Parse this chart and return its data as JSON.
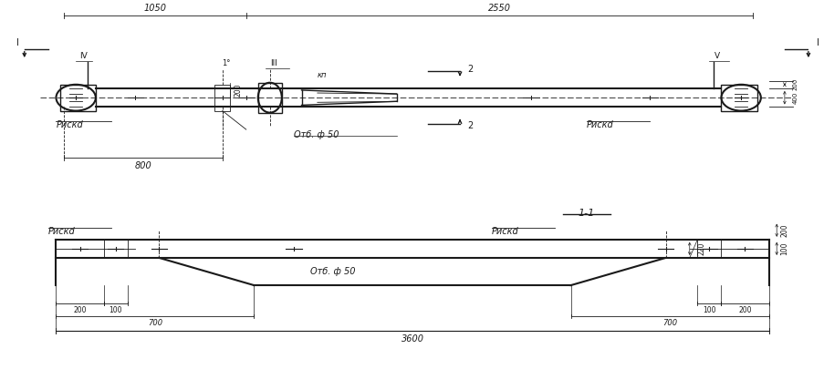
{
  "bg_color": "#ffffff",
  "line_color": "#1a1a1a",
  "dim_1050": "1050",
  "dim_2550": "2550",
  "dim_800": "800",
  "dim_700_l": "700",
  "dim_700_r": "700",
  "dim_3600": "3600",
  "dim_220": "220",
  "dim_200": "200",
  "dim_100": "100",
  "dim_400": "400",
  "label_riskd": "Рискd",
  "label_otv": "Отб. ф 50",
  "label_kn": "кп",
  "label_11": "1-1",
  "section_I": "I",
  "section_III": "III",
  "section_IV": "IV",
  "section_V": "V",
  "num_1": "1°",
  "num_2": "2"
}
